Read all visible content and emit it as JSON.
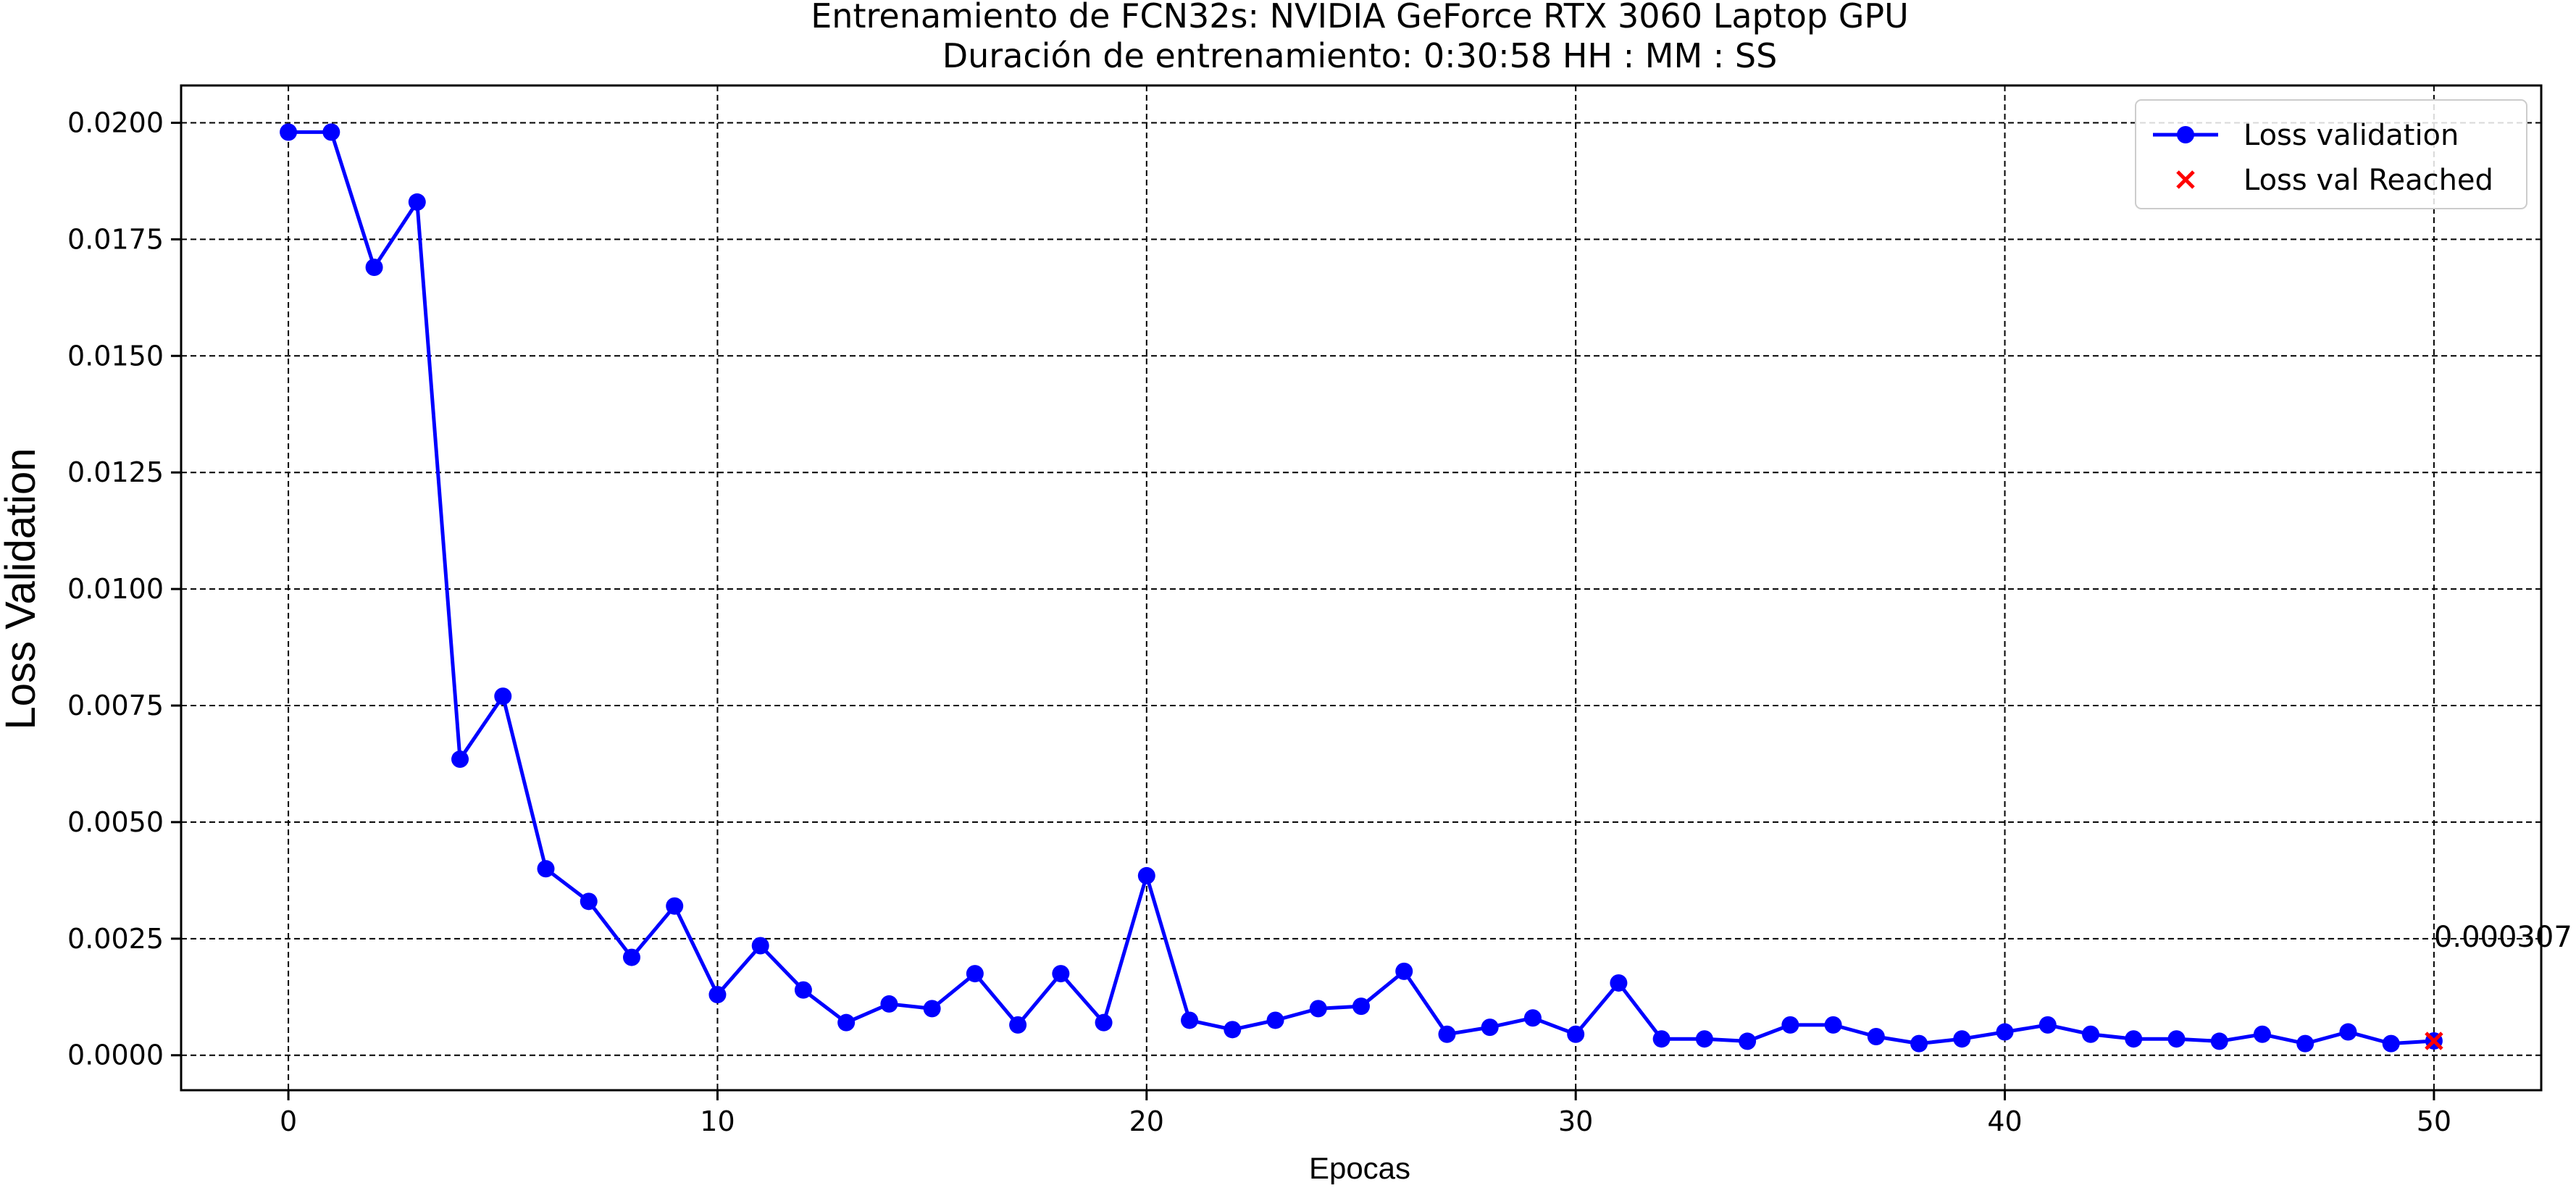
{
  "chart_data": {
    "type": "line",
    "title": "Entrenamiento de FCN32s: NVIDIA GeForce RTX 3060 Laptop GPU",
    "subtitle": "Duración de entrenamiento: 0:30:58 HH : MM : SS",
    "xlabel": "Epocas",
    "ylabel": "Loss Validation",
    "xlim": [
      -2.5,
      52.5
    ],
    "ylim": [
      -0.00075,
      0.0208
    ],
    "xticks": [
      0,
      10,
      20,
      30,
      40,
      50
    ],
    "xtick_labels": [
      "0",
      "10",
      "20",
      "30",
      "40",
      "50"
    ],
    "yticks": [
      0.0,
      0.0025,
      0.005,
      0.0075,
      0.01,
      0.0125,
      0.015,
      0.0175,
      0.02
    ],
    "ytick_labels": [
      "0.0000",
      "0.0025",
      "0.0050",
      "0.0075",
      "0.0100",
      "0.0125",
      "0.0150",
      "0.0175",
      "0.0200"
    ],
    "grid": true,
    "legend_position": "top-right",
    "series": [
      {
        "name": "Loss validation",
        "type": "line",
        "marker": "circle",
        "color": "#0000ff",
        "x": [
          0,
          1,
          2,
          3,
          4,
          5,
          6,
          7,
          8,
          9,
          10,
          11,
          12,
          13,
          14,
          15,
          16,
          17,
          18,
          19,
          20,
          21,
          22,
          23,
          24,
          25,
          26,
          27,
          28,
          29,
          30,
          31,
          32,
          33,
          34,
          35,
          36,
          37,
          38,
          39,
          40,
          41,
          42,
          43,
          44,
          45,
          46,
          47,
          48,
          49,
          50
        ],
        "y": [
          0.0198,
          0.0198,
          0.0169,
          0.0183,
          0.00635,
          0.0077,
          0.004,
          0.0033,
          0.0021,
          0.0032,
          0.0013,
          0.00235,
          0.0014,
          0.0007,
          0.0011,
          0.001,
          0.00175,
          0.00065,
          0.00175,
          0.0007,
          0.00385,
          0.00075,
          0.00055,
          0.00075,
          0.001,
          0.00105,
          0.0018,
          0.00045,
          0.0006,
          0.0008,
          0.00045,
          0.00155,
          0.00035,
          0.00035,
          0.0003,
          0.00065,
          0.00065,
          0.0004,
          0.00025,
          0.00035,
          0.0005,
          0.00065,
          0.00045,
          0.00035,
          0.00035,
          0.0003,
          0.00045,
          0.00025,
          0.0005,
          0.00025,
          0.000307
        ]
      },
      {
        "name": "Loss val Reached",
        "type": "scatter",
        "marker": "x",
        "color": "#ff0000",
        "x": [
          50
        ],
        "y": [
          0.000307
        ]
      }
    ],
    "annotations": [
      {
        "text": "0.000307",
        "x": 50,
        "y": 0.000307
      }
    ]
  }
}
